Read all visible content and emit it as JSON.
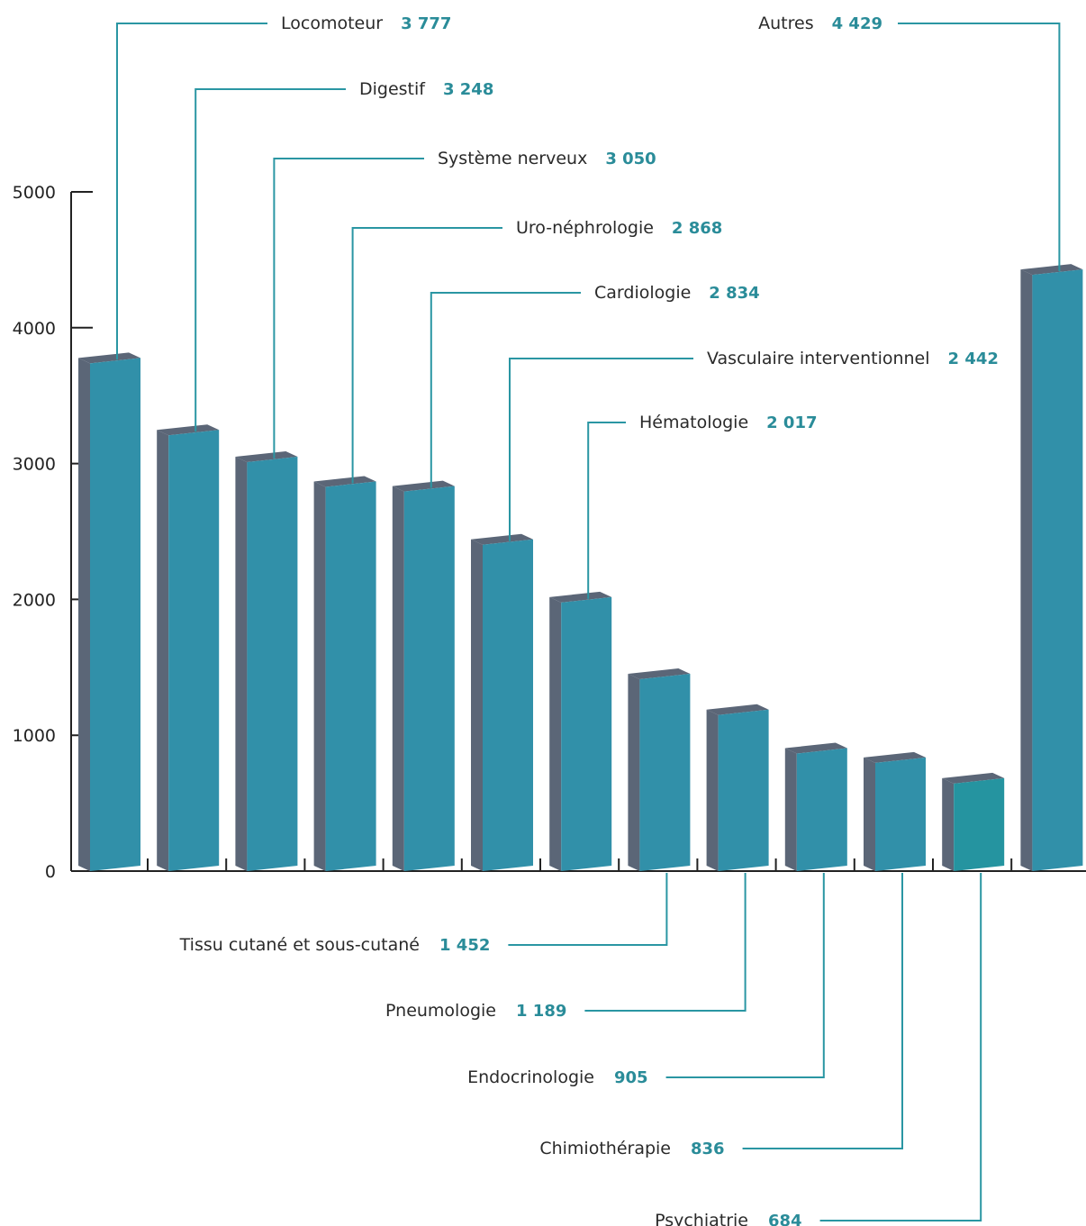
{
  "chart_data": {
    "type": "bar",
    "ylim": [
      0,
      5000
    ],
    "yticks": [
      0,
      1000,
      2000,
      3000,
      4000,
      5000
    ],
    "grid": false,
    "colors": {
      "bar_front": "#3190a9",
      "bar_highlight": "#2594a0",
      "bar_side": "#5b6677",
      "leader": "#2a96a3",
      "value_text": "#2a8c99",
      "axis": "#222222"
    },
    "categories": [
      "Locomoteur",
      "Digestif",
      "Système nerveux",
      "Uro-néphrologie",
      "Cardiologie",
      "Vasculaire interventionnel",
      "Hématologie",
      "Tissu cutané et sous-cutané",
      "Pneumologie",
      "Endocrinologie",
      "Chimiothérapie",
      "Psychiatrie",
      "Autres"
    ],
    "values": [
      3777,
      3248,
      3050,
      2868,
      2834,
      2442,
      2017,
      1452,
      1189,
      905,
      836,
      684,
      4429
    ],
    "value_labels": [
      "3 777",
      "3 248",
      "3 050",
      "2 868",
      "2 834",
      "2 442",
      "2 017",
      "1 452",
      "1 189",
      "905",
      "836",
      "684",
      "4 429"
    ],
    "label_side": [
      "top",
      "top",
      "top",
      "top",
      "top",
      "top",
      "top",
      "bottom",
      "bottom",
      "bottom",
      "bottom",
      "bottom",
      "top"
    ],
    "highlight_index": 11
  }
}
